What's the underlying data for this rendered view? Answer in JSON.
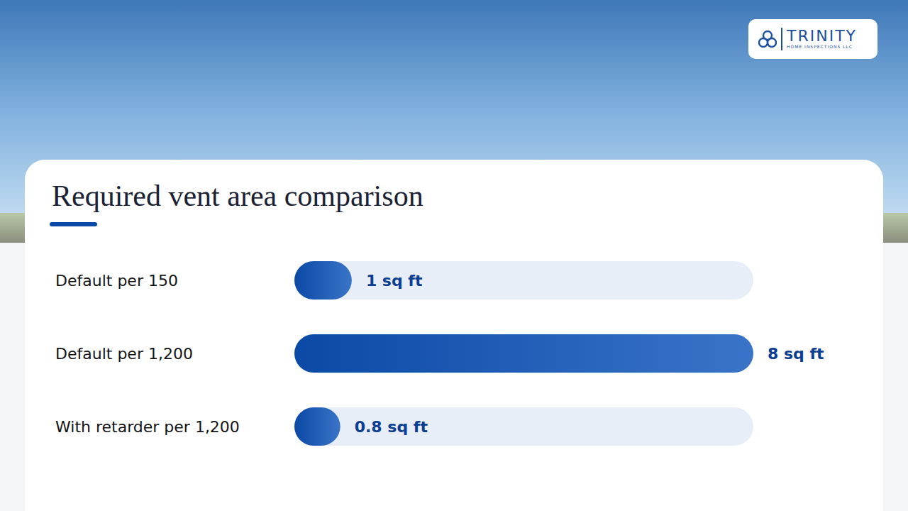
{
  "chart_data": {
    "type": "bar",
    "title": "Required vent area comparison",
    "orientation": "horizontal",
    "categories": [
      "Default per 150",
      "Default per 1,200",
      "With retarder per 1,200"
    ],
    "values": [
      1,
      8,
      0.8
    ],
    "value_labels": [
      "1 sq ft",
      "8 sq ft",
      "0.8 sq ft"
    ],
    "color": "#0b49a6",
    "xlim": [
      0,
      8
    ],
    "grid": false,
    "tick_labels": "y",
    "data_labels": true
  },
  "logo": {
    "name": "TRINITY",
    "subtitle": "HOME INSPECTIONS LLC"
  }
}
